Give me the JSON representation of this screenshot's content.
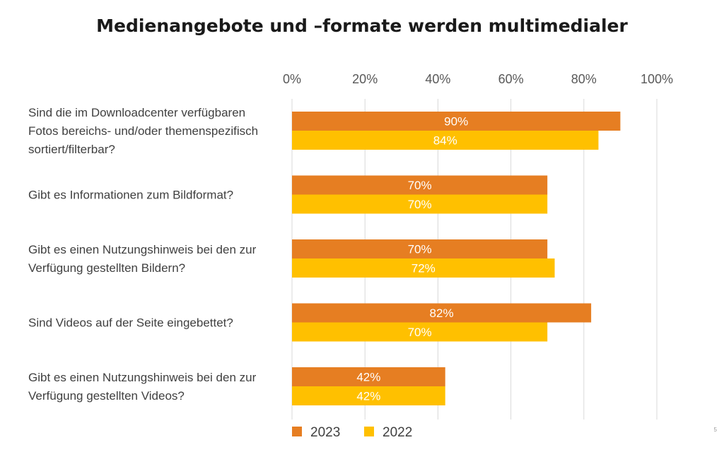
{
  "title": "Medienangebote und –formate werden multimedialer",
  "page_number": "5",
  "chart_data": {
    "type": "bar",
    "orientation": "horizontal",
    "title": "Medienangebote und –formate werden multimedialer",
    "xlim": [
      0,
      100
    ],
    "x_ticks": [
      "0%",
      "20%",
      "40%",
      "60%",
      "80%",
      "100%"
    ],
    "grid": true,
    "legend_position": "bottom",
    "categories": [
      [
        "Sind die im Downloadcenter verfügbaren",
        "Fotos bereichs- und/oder themenspezifisch",
        "sortiert/filterbar?"
      ],
      [
        "Gibt es Informationen zum Bildformat?"
      ],
      [
        "Gibt es einen Nutzungshinweis bei den zur",
        "Verfügung gestellten Bildern?"
      ],
      [
        "Sind Videos auf der Seite eingebettet?"
      ],
      [
        "Gibt es einen Nutzungshinweis bei den zur",
        "Verfügung gestellten Videos?"
      ]
    ],
    "series": [
      {
        "name": "2023",
        "color": "#E67E22",
        "values": [
          90,
          70,
          70,
          82,
          42
        ],
        "labels": [
          "90%",
          "70%",
          "70%",
          "82%",
          "42%"
        ]
      },
      {
        "name": "2022",
        "color": "#FFC000",
        "values": [
          84,
          70,
          72,
          70,
          42
        ],
        "labels": [
          "84%",
          "70%",
          "72%",
          "70%",
          "42%"
        ]
      }
    ]
  }
}
